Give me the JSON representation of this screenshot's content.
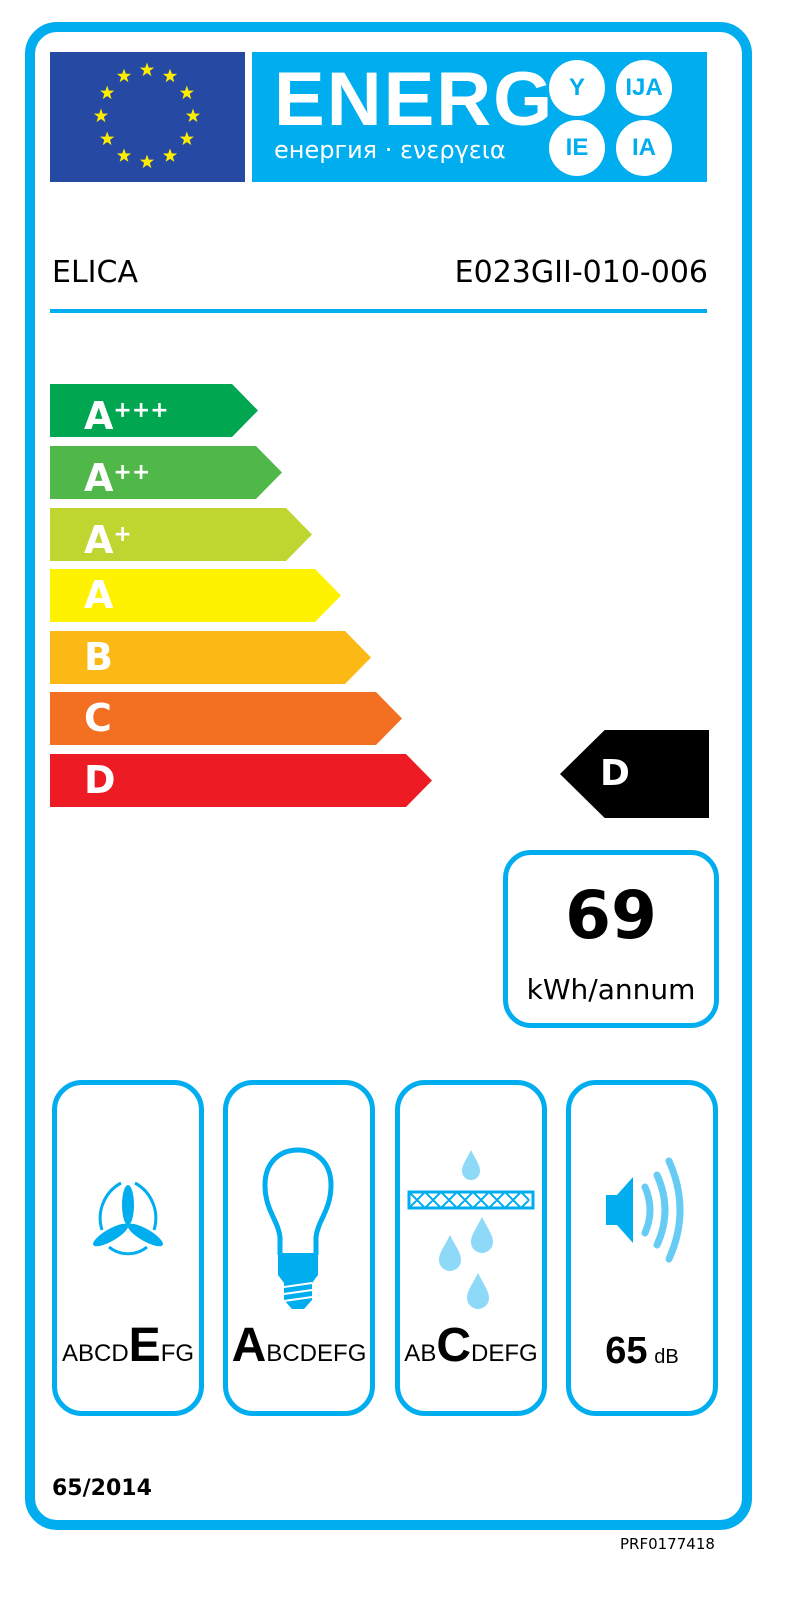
{
  "header": {
    "title": "ENERG",
    "subtitle": "енергия · ενεργεια",
    "suffixes": [
      "Y",
      "IJA",
      "IE",
      "IA"
    ],
    "flag": "eu-flag"
  },
  "supplier": "ELICA",
  "model": "E023GII-010-006",
  "scale": [
    {
      "letter": "A",
      "plus": "+++",
      "color": "#00a650"
    },
    {
      "letter": "A",
      "plus": "++",
      "color": "#50b848"
    },
    {
      "letter": "A",
      "plus": "+",
      "color": "#bed62f"
    },
    {
      "letter": "A",
      "plus": "",
      "color": "#fff200"
    },
    {
      "letter": "B",
      "plus": "",
      "color": "#fcb814"
    },
    {
      "letter": "C",
      "plus": "",
      "color": "#f36f21"
    },
    {
      "letter": "D",
      "plus": "",
      "color": "#ed1c24"
    }
  ],
  "rating": "D",
  "consumption": {
    "value": "69",
    "unit": "kWh/annum"
  },
  "pictograms": [
    {
      "icon": "fan-icon",
      "letters": [
        "A",
        "B",
        "C",
        "D",
        "E",
        "F",
        "G"
      ],
      "selected": "E"
    },
    {
      "icon": "light-bulb-icon",
      "letters": [
        "A",
        "B",
        "C",
        "D",
        "E",
        "F",
        "G"
      ],
      "selected": "A"
    },
    {
      "icon": "grease-filter-icon",
      "letters": [
        "A",
        "B",
        "C",
        "D",
        "E",
        "F",
        "G"
      ],
      "selected": "C"
    },
    {
      "icon": "speaker-icon",
      "value": "65",
      "unit": "dB"
    }
  ],
  "regulation": "65/2014",
  "code": "PRF0177418",
  "accent": "#00adef"
}
